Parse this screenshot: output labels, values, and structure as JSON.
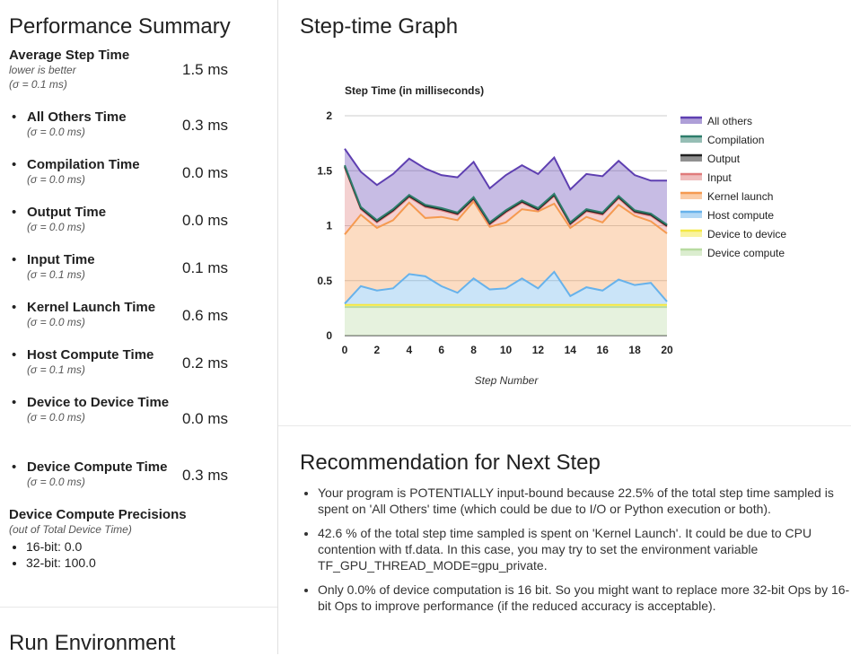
{
  "summary": {
    "title": "Performance Summary",
    "avg": {
      "label": "Average Step Time",
      "note": "lower is better",
      "sigma": "(σ = 0.1 ms)",
      "value": "1.5 ms"
    },
    "items": [
      {
        "label": "All Others Time",
        "sigma": "(σ = 0.0 ms)",
        "value": "0.3 ms"
      },
      {
        "label": "Compilation Time",
        "sigma": "(σ = 0.0 ms)",
        "value": "0.0 ms"
      },
      {
        "label": "Output Time",
        "sigma": "(σ = 0.0 ms)",
        "value": "0.0 ms"
      },
      {
        "label": "Input Time",
        "sigma": "(σ = 0.1 ms)",
        "value": "0.1 ms"
      },
      {
        "label": "Kernel Launch Time",
        "sigma": "(σ = 0.0 ms)",
        "value": "0.6 ms"
      },
      {
        "label": "Host Compute Time",
        "sigma": "(σ = 0.1 ms)",
        "value": "0.2 ms"
      },
      {
        "label": "Device to Device Time",
        "sigma": "(σ = 0.0 ms)",
        "value": "0.0 ms"
      },
      {
        "label": "Device Compute Time",
        "sigma": "(σ = 0.0 ms)",
        "value": "0.3 ms"
      }
    ],
    "precisions": {
      "title": "Device Compute Precisions",
      "note": "(out of Total Device Time)",
      "items": [
        "16-bit: 0.0",
        "32-bit: 100.0"
      ]
    }
  },
  "run_env": {
    "title": "Run Environment"
  },
  "graph": {
    "title": "Step-time Graph"
  },
  "recommendation": {
    "title": "Recommendation for Next Step",
    "items": [
      "Your program is POTENTIALLY input-bound because 22.5% of the total step time sampled is spent on 'All Others' time (which could be due to I/O or Python execution or both).",
      "42.6 % of the total step time sampled is spent on 'Kernel Launch'. It could be due to CPU contention with tf.data. In this case, you may try to set the environment variable TF_GPU_THREAD_MODE=gpu_private.",
      "Only 0.0% of device computation is 16 bit. So you might want to replace more 32-bit Ops by 16-bit Ops to improve performance (if the reduced accuracy is acceptable)."
    ]
  },
  "chart_data": {
    "type": "area",
    "title": "Step Time (in milliseconds)",
    "xlabel": "Step Number",
    "ylabel": "",
    "x": [
      0,
      1,
      2,
      3,
      4,
      5,
      6,
      7,
      8,
      9,
      10,
      11,
      12,
      13,
      14,
      15,
      16,
      17,
      18,
      19,
      20
    ],
    "xticks": [
      0,
      2,
      4,
      6,
      8,
      10,
      12,
      14,
      16,
      18,
      20
    ],
    "yticks": [
      0,
      0.5,
      1,
      1.5,
      2
    ],
    "ylim": [
      0,
      2
    ],
    "stacked": true,
    "legend": "right",
    "series": [
      {
        "name": "Device compute",
        "color": "#b7dba0",
        "values": [
          0.26,
          0.26,
          0.26,
          0.26,
          0.26,
          0.26,
          0.26,
          0.26,
          0.26,
          0.26,
          0.26,
          0.26,
          0.26,
          0.26,
          0.26,
          0.26,
          0.26,
          0.26,
          0.26,
          0.26,
          0.26
        ]
      },
      {
        "name": "Device to device",
        "color": "#f4e842",
        "values": [
          0.02,
          0.02,
          0.02,
          0.02,
          0.02,
          0.02,
          0.02,
          0.02,
          0.02,
          0.02,
          0.02,
          0.02,
          0.02,
          0.02,
          0.02,
          0.02,
          0.02,
          0.02,
          0.02,
          0.02,
          0.02
        ]
      },
      {
        "name": "Host compute",
        "color": "#67b2eb",
        "values": [
          0.01,
          0.17,
          0.13,
          0.15,
          0.28,
          0.26,
          0.17,
          0.11,
          0.24,
          0.14,
          0.15,
          0.24,
          0.15,
          0.3,
          0.08,
          0.16,
          0.13,
          0.23,
          0.18,
          0.2,
          0.03
        ]
      },
      {
        "name": "Kernel launch",
        "color": "#f59a50",
        "values": [
          0.63,
          0.65,
          0.57,
          0.62,
          0.65,
          0.53,
          0.63,
          0.66,
          0.7,
          0.57,
          0.6,
          0.63,
          0.7,
          0.62,
          0.62,
          0.64,
          0.62,
          0.68,
          0.63,
          0.56,
          0.62
        ]
      },
      {
        "name": "Input",
        "color": "#e07b7b",
        "values": [
          0.61,
          0.05,
          0.05,
          0.08,
          0.05,
          0.1,
          0.06,
          0.05,
          0.02,
          0.02,
          0.09,
          0.06,
          0.01,
          0.07,
          0.03,
          0.05,
          0.07,
          0.06,
          0.03,
          0.05,
          0.06
        ]
      },
      {
        "name": "Output",
        "color": "#212121",
        "values": [
          0.01,
          0.01,
          0.01,
          0.01,
          0.01,
          0.01,
          0.01,
          0.01,
          0.01,
          0.01,
          0.01,
          0.01,
          0.01,
          0.01,
          0.01,
          0.01,
          0.01,
          0.01,
          0.01,
          0.01,
          0.01
        ]
      },
      {
        "name": "Compilation",
        "color": "#2e7d6b",
        "values": [
          0.01,
          0.01,
          0.01,
          0.01,
          0.01,
          0.01,
          0.01,
          0.01,
          0.01,
          0.01,
          0.01,
          0.01,
          0.01,
          0.01,
          0.01,
          0.01,
          0.01,
          0.01,
          0.01,
          0.01,
          0.01
        ]
      },
      {
        "name": "All others",
        "color": "#5e3fb1",
        "values": [
          0.15,
          0.32,
          0.32,
          0.32,
          0.33,
          0.33,
          0.3,
          0.32,
          0.32,
          0.31,
          0.32,
          0.32,
          0.31,
          0.33,
          0.3,
          0.32,
          0.33,
          0.32,
          0.32,
          0.3,
          0.4
        ]
      }
    ]
  }
}
